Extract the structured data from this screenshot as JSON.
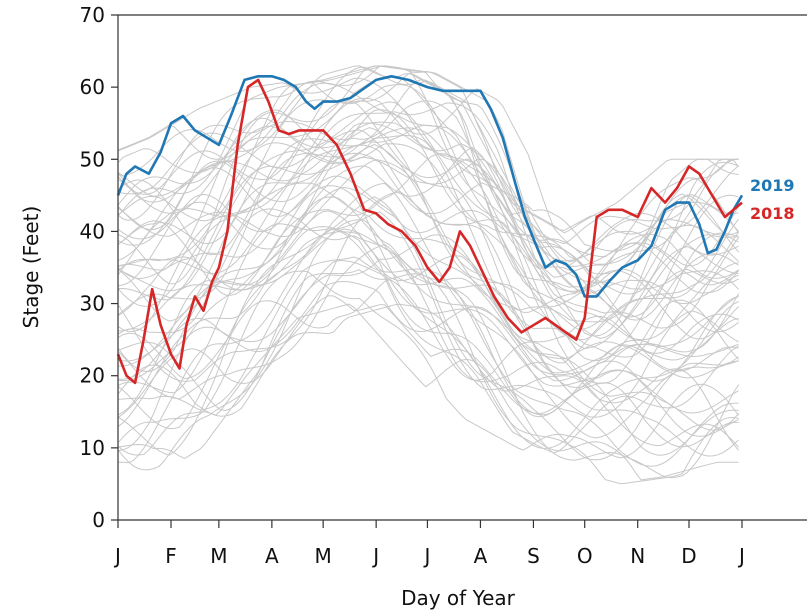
{
  "chart_data": {
    "type": "line",
    "title": "",
    "xlabel": "Day of Year",
    "ylabel": "Stage (Feet)",
    "ylim": [
      0,
      70
    ],
    "xlim": [
      0,
      365
    ],
    "yticks": [
      0,
      10,
      20,
      30,
      40,
      50,
      60,
      70
    ],
    "xticks": [
      {
        "label": "J",
        "x": 0
      },
      {
        "label": "F",
        "x": 31
      },
      {
        "label": "M",
        "x": 59
      },
      {
        "label": "A",
        "x": 90
      },
      {
        "label": "M",
        "x": 120
      },
      {
        "label": "J",
        "x": 151
      },
      {
        "label": "J",
        "x": 181
      },
      {
        "label": "A",
        "x": 212
      },
      {
        "label": "S",
        "x": 243
      },
      {
        "label": "O",
        "x": 273
      },
      {
        "label": "N",
        "x": 304
      },
      {
        "label": "D",
        "x": 334
      },
      {
        "label": "J",
        "x": 365
      }
    ],
    "grid": false,
    "legend": "right",
    "background_series": {
      "color": "#c8c8c8",
      "description_count": 60,
      "bands": {
        "x": [
          0,
          31,
          59,
          90,
          120,
          151,
          181,
          212,
          243,
          273,
          304,
          334,
          365
        ],
        "low": [
          8,
          6,
          10,
          20,
          28,
          30,
          22,
          14,
          10,
          7,
          5,
          6,
          8
        ],
        "high": [
          50,
          53,
          57,
          60,
          61,
          63,
          62,
          58,
          44,
          40,
          44,
          50,
          50
        ]
      }
    },
    "series": [
      {
        "name": "2019",
        "color": "#1f77b4",
        "x": [
          0,
          5,
          10,
          18,
          25,
          31,
          38,
          45,
          52,
          59,
          66,
          74,
          82,
          90,
          97,
          104,
          110,
          115,
          120,
          128,
          136,
          145,
          151,
          160,
          170,
          181,
          190,
          200,
          212,
          218,
          225,
          232,
          238,
          243,
          250,
          256,
          262,
          268,
          273,
          280,
          287,
          295,
          304,
          312,
          320,
          327,
          334,
          340,
          345,
          350,
          355,
          360,
          365
        ],
        "values": [
          45,
          48,
          49,
          48,
          51,
          55,
          56,
          54,
          53,
          52,
          56,
          61,
          61.5,
          61.5,
          61,
          60,
          58,
          57,
          58,
          58,
          58.5,
          60,
          61,
          61.5,
          61,
          60,
          59.5,
          59.5,
          59.5,
          57,
          53,
          47,
          42,
          39,
          35,
          36,
          35.5,
          34,
          31,
          31,
          33,
          35,
          36,
          38,
          43,
          44,
          44,
          41,
          37,
          37.5,
          40,
          43,
          45
        ]
      },
      {
        "name": "2018",
        "color": "#d62728",
        "x": [
          0,
          5,
          10,
          15,
          20,
          25,
          31,
          36,
          40,
          45,
          50,
          55,
          59,
          64,
          70,
          76,
          82,
          88,
          94,
          100,
          106,
          112,
          120,
          128,
          136,
          144,
          151,
          158,
          166,
          174,
          181,
          188,
          194,
          200,
          206,
          212,
          220,
          228,
          236,
          243,
          250,
          256,
          262,
          268,
          273,
          280,
          287,
          295,
          304,
          312,
          320,
          327,
          334,
          340,
          345,
          350,
          355,
          360,
          365
        ],
        "values": [
          23,
          20,
          19,
          25,
          32,
          27,
          23,
          21,
          27,
          31,
          29,
          33,
          35,
          40,
          52,
          60,
          61,
          58,
          54,
          53.5,
          54,
          54,
          54,
          52,
          48,
          43,
          42.5,
          41,
          40,
          38,
          35,
          33,
          35,
          40,
          38,
          35,
          31,
          28,
          26,
          27,
          28,
          27,
          26,
          25,
          28,
          42,
          43,
          43,
          42,
          46,
          44,
          46,
          49,
          48,
          46,
          44,
          42,
          43,
          44
        ]
      }
    ]
  }
}
